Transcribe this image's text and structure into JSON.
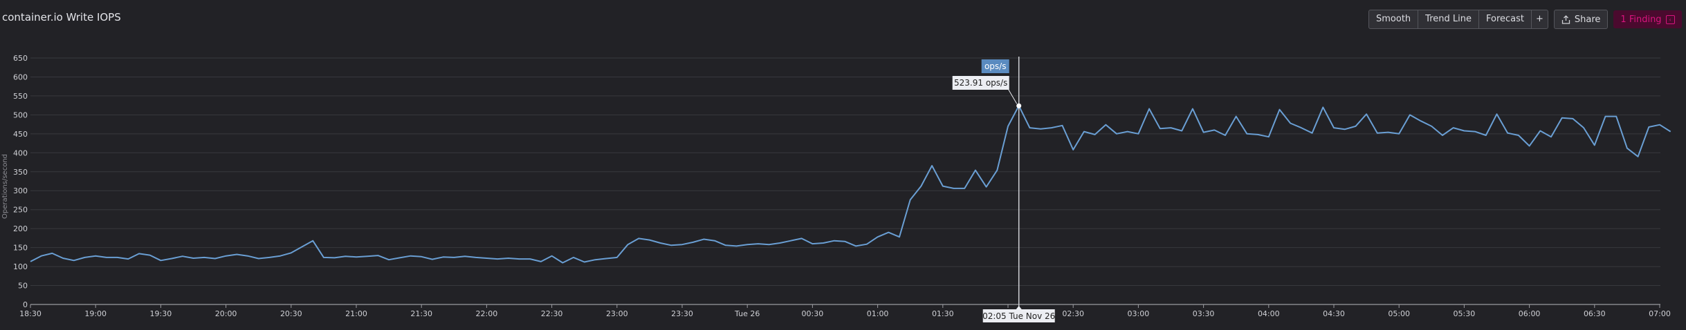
{
  "title": "container.io Write IOPS",
  "toolbar": {
    "smooth": "Smooth",
    "trend_line": "Trend Line",
    "forecast": "Forecast",
    "add": "+",
    "share": "Share",
    "finding": "1 Finding"
  },
  "tooltip": {
    "unit_label": "ops/s",
    "value": "523.91 ops/s",
    "time": "02:05 Tue Nov 26"
  },
  "colors": {
    "line": "#6a9fd4",
    "finding": "#d8147e",
    "background": "#222226"
  },
  "chart_data": {
    "type": "line",
    "title": "container.io Write IOPS",
    "xlabel": "",
    "ylabel": "Operations/second",
    "ylim": [
      0,
      650
    ],
    "yticks": [
      0,
      50,
      100,
      150,
      200,
      250,
      300,
      350,
      400,
      450,
      500,
      550,
      600,
      650
    ],
    "xtick_labels": [
      "18:30",
      "19:00",
      "19:30",
      "20:00",
      "20:30",
      "21:00",
      "21:30",
      "22:00",
      "22:30",
      "23:00",
      "23:30",
      "Tue 26",
      "00:30",
      "01:00",
      "01:30",
      "02:00",
      "02:30",
      "03:00",
      "03:30",
      "04:00",
      "04:30",
      "05:00",
      "05:30",
      "06:00",
      "06:30",
      "07:00"
    ],
    "grid": true,
    "legend": "none",
    "interval_minutes": 5,
    "x_start": "18:30",
    "x_end": "07:00",
    "highlight": {
      "time": "02:05 Tue Nov 26",
      "value": 523.91
    },
    "series": [
      {
        "name": "ops/s",
        "values": [
          113,
          128,
          135,
          122,
          116,
          124,
          128,
          124,
          124,
          120,
          134,
          130,
          116,
          121,
          127,
          122,
          124,
          121,
          128,
          132,
          128,
          121,
          124,
          128,
          136,
          152,
          168,
          124,
          123,
          127,
          125,
          127,
          129,
          118,
          123,
          128,
          126,
          119,
          125,
          124,
          127,
          124,
          122,
          120,
          122,
          120,
          120,
          113,
          128,
          110,
          124,
          112,
          118,
          121,
          124,
          158,
          174,
          170,
          162,
          156,
          158,
          164,
          172,
          168,
          156,
          154,
          158,
          160,
          158,
          162,
          168,
          174,
          160,
          162,
          168,
          166,
          154,
          159,
          178,
          190,
          178,
          276,
          312,
          366,
          312,
          306,
          306,
          354,
          310,
          354,
          470,
          524,
          466,
          463,
          466,
          472,
          408,
          456,
          448,
          474,
          450,
          456,
          450,
          516,
          464,
          466,
          458,
          516,
          454,
          460,
          446,
          496,
          450,
          448,
          442,
          514,
          478,
          466,
          452,
          520,
          466,
          462,
          470,
          502,
          452,
          454,
          450,
          500,
          484,
          470,
          446,
          466,
          458,
          456,
          446,
          502,
          452,
          446,
          418,
          458,
          442,
          492,
          490,
          466,
          420,
          496,
          496,
          412,
          390,
          468,
          474,
          456
        ]
      }
    ]
  }
}
